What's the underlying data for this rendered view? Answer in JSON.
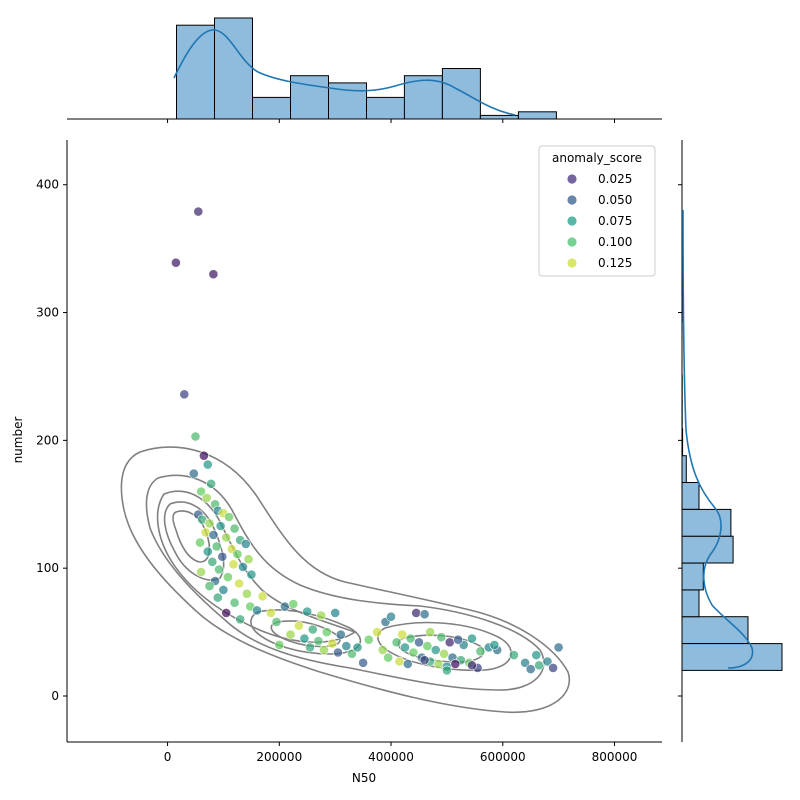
{
  "chart_data": {
    "type": "scatter",
    "title": "",
    "xlabel": "N50",
    "ylabel": "number",
    "xlim": [
      -180000,
      885000
    ],
    "ylim": [
      -36000,
      435000
    ],
    "ylim_units": [
      -36,
      435
    ],
    "x_ticks": [
      0,
      200000,
      400000,
      600000,
      800000
    ],
    "x_tick_labels": [
      "0",
      "200000",
      "400000",
      "600000",
      "800000"
    ],
    "y_ticks": [
      0,
      100,
      200,
      300,
      400
    ],
    "y_tick_labels": [
      "0",
      "100",
      "200",
      "300",
      "400"
    ],
    "grid": false,
    "legend": {
      "title": "anomaly_score",
      "placement": "top-right",
      "entries": [
        {
          "label": "0.025",
          "color": "#46327e"
        },
        {
          "label": "0.050",
          "color": "#365c8d"
        },
        {
          "label": "0.075",
          "color": "#1fa187"
        },
        {
          "label": "0.100",
          "color": "#4ac16d"
        },
        {
          "label": "0.125",
          "color": "#cddf3a"
        }
      ]
    },
    "points": [
      [
        55000,
        379,
        0.03
      ],
      [
        15000,
        339,
        0.025
      ],
      [
        82000,
        330,
        0.025
      ],
      [
        30000,
        236,
        0.04
      ],
      [
        65000,
        188,
        0.02
      ],
      [
        50000,
        203,
        0.1
      ],
      [
        72000,
        181,
        0.08
      ],
      [
        47000,
        174,
        0.06
      ],
      [
        78000,
        166,
        0.09
      ],
      [
        60000,
        160,
        0.11
      ],
      [
        70000,
        155,
        0.12
      ],
      [
        85000,
        150,
        0.1
      ],
      [
        90000,
        145,
        0.07
      ],
      [
        100000,
        143,
        0.13
      ],
      [
        55000,
        142,
        0.05
      ],
      [
        110000,
        140,
        0.11
      ],
      [
        62000,
        138,
        0.09
      ],
      [
        75000,
        135,
        0.12
      ],
      [
        95000,
        133,
        0.08
      ],
      [
        120000,
        131,
        0.1
      ],
      [
        68000,
        128,
        0.13
      ],
      [
        82000,
        126,
        0.06
      ],
      [
        105000,
        124,
        0.12
      ],
      [
        130000,
        122,
        0.09
      ],
      [
        58000,
        120,
        0.11
      ],
      [
        140000,
        119,
        0.07
      ],
      [
        88000,
        117,
        0.1
      ],
      [
        115000,
        115,
        0.13
      ],
      [
        72000,
        113,
        0.08
      ],
      [
        125000,
        111,
        0.11
      ],
      [
        98000,
        109,
        0.05
      ],
      [
        145000,
        107,
        0.12
      ],
      [
        80000,
        105,
        0.09
      ],
      [
        118000,
        103,
        0.13
      ],
      [
        135000,
        101,
        0.07
      ],
      [
        92000,
        99,
        0.1
      ],
      [
        60000,
        97,
        0.12
      ],
      [
        150000,
        95,
        0.08
      ],
      [
        108000,
        93,
        0.11
      ],
      [
        85000,
        90,
        0.06
      ],
      [
        128000,
        88,
        0.13
      ],
      [
        75000,
        86,
        0.1
      ],
      [
        100000,
        83,
        0.07
      ],
      [
        142000,
        80,
        0.12
      ],
      [
        90000,
        77,
        0.09
      ],
      [
        170000,
        78,
        0.13
      ],
      [
        120000,
        73,
        0.1
      ],
      [
        148000,
        70,
        0.11
      ],
      [
        105000,
        65,
        0.02
      ],
      [
        160000,
        67,
        0.07
      ],
      [
        185000,
        65,
        0.13
      ],
      [
        130000,
        60,
        0.09
      ],
      [
        210000,
        70,
        0.06
      ],
      [
        225000,
        72,
        0.11
      ],
      [
        250000,
        66,
        0.08
      ],
      [
        275000,
        63,
        0.12
      ],
      [
        300000,
        65,
        0.07
      ],
      [
        195000,
        58,
        0.1
      ],
      [
        235000,
        55,
        0.13
      ],
      [
        260000,
        52,
        0.09
      ],
      [
        285000,
        50,
        0.11
      ],
      [
        310000,
        48,
        0.06
      ],
      [
        220000,
        48,
        0.12
      ],
      [
        245000,
        45,
        0.08
      ],
      [
        270000,
        43,
        0.1
      ],
      [
        295000,
        41,
        0.13
      ],
      [
        320000,
        39,
        0.07
      ],
      [
        200000,
        40,
        0.11
      ],
      [
        255000,
        38,
        0.09
      ],
      [
        280000,
        36,
        0.12
      ],
      [
        305000,
        34,
        0.05
      ],
      [
        330000,
        33,
        0.1
      ],
      [
        350000,
        26,
        0.05
      ],
      [
        340000,
        38,
        0.08
      ],
      [
        360000,
        44,
        0.11
      ],
      [
        375000,
        50,
        0.13
      ],
      [
        390000,
        58,
        0.06
      ],
      [
        400000,
        62,
        0.07
      ],
      [
        445000,
        65,
        0.03
      ],
      [
        460000,
        64,
        0.06
      ],
      [
        385000,
        36,
        0.12
      ],
      [
        410000,
        42,
        0.1
      ],
      [
        425000,
        38,
        0.08
      ],
      [
        440000,
        34,
        0.11
      ],
      [
        455000,
        30,
        0.06
      ],
      [
        470000,
        27,
        0.09
      ],
      [
        485000,
        25,
        0.12
      ],
      [
        500000,
        23,
        0.07
      ],
      [
        420000,
        48,
        0.13
      ],
      [
        435000,
        45,
        0.1
      ],
      [
        450000,
        42,
        0.05
      ],
      [
        465000,
        39,
        0.11
      ],
      [
        480000,
        36,
        0.08
      ],
      [
        495000,
        33,
        0.12
      ],
      [
        510000,
        30,
        0.06
      ],
      [
        525000,
        28,
        0.09
      ],
      [
        540000,
        26,
        0.11
      ],
      [
        555000,
        22,
        0.04
      ],
      [
        530000,
        40,
        0.07
      ],
      [
        545000,
        45,
        0.08
      ],
      [
        560000,
        35,
        0.1
      ],
      [
        575000,
        38,
        0.07
      ],
      [
        590000,
        36,
        0.06
      ],
      [
        505000,
        42,
        0.03
      ],
      [
        520000,
        44,
        0.05
      ],
      [
        470000,
        50,
        0.12
      ],
      [
        490000,
        46,
        0.1
      ],
      [
        395000,
        30,
        0.11
      ],
      [
        415000,
        27,
        0.13
      ],
      [
        430000,
        25,
        0.06
      ],
      [
        500000,
        20,
        0.09
      ],
      [
        640000,
        26,
        0.07
      ],
      [
        665000,
        24,
        0.09
      ],
      [
        660000,
        32,
        0.08
      ],
      [
        680000,
        27,
        0.07
      ],
      [
        690000,
        22,
        0.04
      ],
      [
        700000,
        38,
        0.06
      ],
      [
        650000,
        21,
        0.06
      ],
      [
        620000,
        32,
        0.09
      ],
      [
        585000,
        40,
        0.08
      ],
      [
        545000,
        24,
        0.03
      ],
      [
        515000,
        25,
        0.02
      ],
      [
        460000,
        28,
        0.04
      ]
    ],
    "n50_hist": {
      "edges": [
        16000,
        84000,
        152000,
        220000,
        288000,
        356000,
        424000,
        492000,
        560000,
        628000,
        696000
      ],
      "counts": [
        13,
        14,
        3,
        6,
        5,
        3,
        6,
        7,
        0.5,
        1
      ]
    },
    "number_hist": {
      "edges": [
        20,
        41,
        62,
        83,
        104,
        125,
        146,
        167,
        188,
        209,
        230,
        251,
        272,
        293,
        314,
        335,
        356,
        377
      ],
      "counts": [
        47,
        31,
        8,
        10,
        24,
        23,
        8,
        2,
        0.3,
        0.1,
        0.1,
        0,
        0,
        0.1,
        0,
        0.1,
        0.1
      ]
    },
    "kde_levels": [
      {
        "color": "#808080",
        "note": "contour"
      }
    ]
  }
}
